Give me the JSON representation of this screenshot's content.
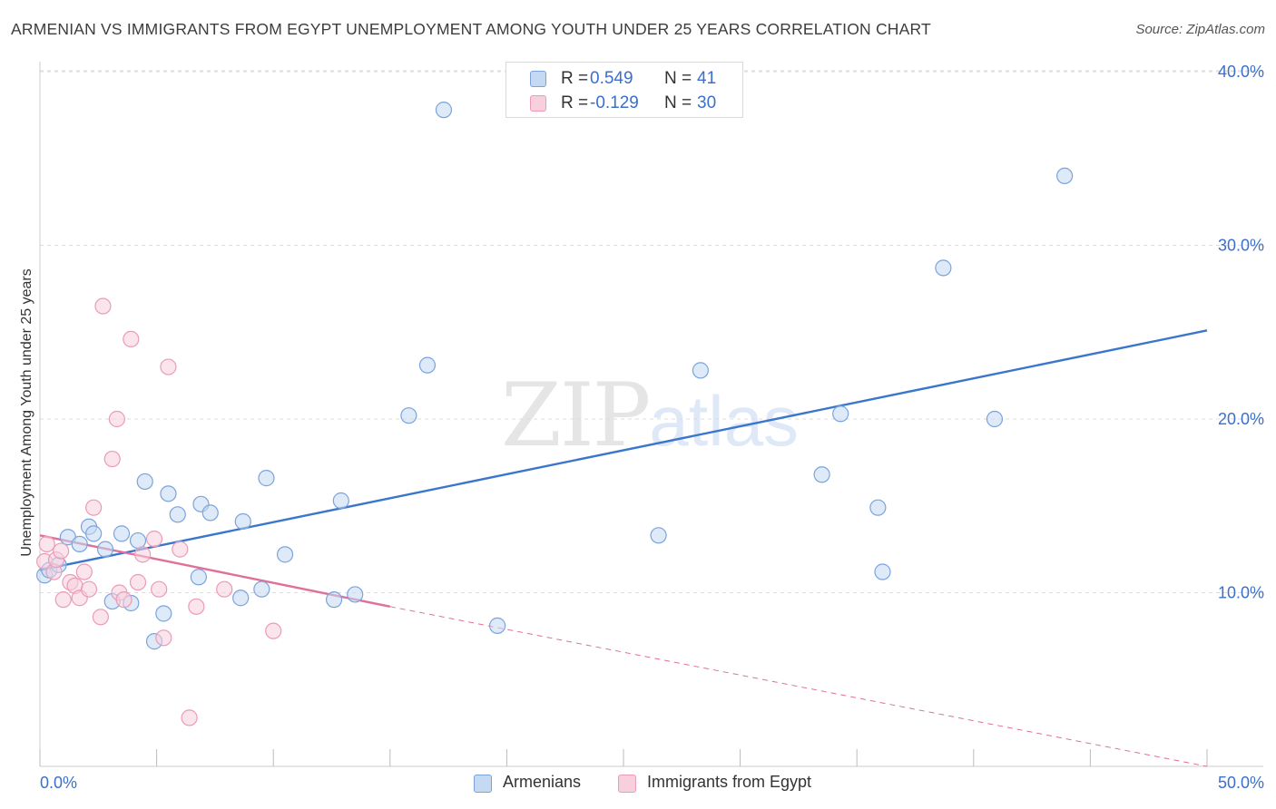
{
  "title": "ARMENIAN VS IMMIGRANTS FROM EGYPT UNEMPLOYMENT AMONG YOUTH UNDER 25 YEARS CORRELATION CHART",
  "source": "Source: ZipAtlas.com",
  "watermark": {
    "zip": "ZIP",
    "atlas": "atlas"
  },
  "legend": {
    "r_label": "R =",
    "n_label": "N =",
    "rows": [
      {
        "r": "0.549",
        "n": "41"
      },
      {
        "r": "-0.129",
        "n": "30"
      }
    ]
  },
  "colors": {
    "blue": "#3a76cc",
    "blue_fill": "#c5d9f3",
    "blue_edge": "#7aa3dd",
    "pink": "#e0709a",
    "pink_fill": "#f8cfdc",
    "pink_edge": "#ec9ab6",
    "axis_text": "#3a6fce",
    "grid": "#dddddd"
  },
  "chart_data": {
    "type": "scatter",
    "title": "ARMENIAN VS IMMIGRANTS FROM EGYPT UNEMPLOYMENT AMONG YOUTH UNDER 25 YEARS CORRELATION CHART",
    "xlabel": "",
    "ylabel": "Unemployment Among Youth under 25 years",
    "xlim": [
      0,
      50
    ],
    "ylim": [
      0,
      40
    ],
    "x_tick_labels": [
      "0.0%",
      "50.0%"
    ],
    "y_ticks": [
      10,
      20,
      30,
      40
    ],
    "y_tick_labels": [
      "10.0%",
      "20.0%",
      "30.0%",
      "40.0%"
    ],
    "grid": true,
    "legend_position": "top-center",
    "series": [
      {
        "name": "Armenians",
        "color": "#3a76cc",
        "points": [
          [
            0.2,
            11.0
          ],
          [
            0.4,
            11.3
          ],
          [
            0.8,
            11.6
          ],
          [
            1.2,
            13.2
          ],
          [
            1.7,
            12.8
          ],
          [
            2.1,
            13.8
          ],
          [
            2.3,
            13.4
          ],
          [
            2.8,
            12.5
          ],
          [
            3.1,
            9.5
          ],
          [
            3.5,
            13.4
          ],
          [
            3.9,
            9.4
          ],
          [
            4.2,
            13.0
          ],
          [
            4.5,
            16.4
          ],
          [
            4.9,
            7.2
          ],
          [
            5.3,
            8.8
          ],
          [
            5.5,
            15.7
          ],
          [
            5.9,
            14.5
          ],
          [
            6.8,
            10.9
          ],
          [
            6.9,
            15.1
          ],
          [
            7.3,
            14.6
          ],
          [
            8.6,
            9.7
          ],
          [
            8.7,
            14.1
          ],
          [
            9.5,
            10.2
          ],
          [
            9.7,
            16.6
          ],
          [
            10.5,
            12.2
          ],
          [
            12.6,
            9.6
          ],
          [
            12.9,
            15.3
          ],
          [
            13.5,
            9.9
          ],
          [
            15.8,
            20.2
          ],
          [
            16.6,
            23.1
          ],
          [
            17.3,
            37.8
          ],
          [
            19.6,
            8.1
          ],
          [
            26.5,
            13.3
          ],
          [
            28.3,
            22.8
          ],
          [
            33.5,
            16.8
          ],
          [
            34.3,
            20.3
          ],
          [
            35.9,
            14.9
          ],
          [
            36.1,
            11.2
          ],
          [
            38.7,
            28.7
          ],
          [
            40.9,
            20.0
          ],
          [
            43.9,
            34.0
          ]
        ],
        "trend": {
          "x": [
            0,
            50
          ],
          "y": [
            11.3,
            25.1
          ]
        }
      },
      {
        "name": "Immigrants from Egypt",
        "color": "#e0709a",
        "points": [
          [
            0.2,
            11.8
          ],
          [
            0.3,
            12.8
          ],
          [
            0.6,
            11.2
          ],
          [
            0.7,
            11.9
          ],
          [
            0.9,
            12.4
          ],
          [
            1.0,
            9.6
          ],
          [
            1.3,
            10.6
          ],
          [
            1.5,
            10.4
          ],
          [
            1.7,
            9.7
          ],
          [
            1.9,
            11.2
          ],
          [
            2.1,
            10.2
          ],
          [
            2.3,
            14.9
          ],
          [
            2.6,
            8.6
          ],
          [
            2.7,
            26.5
          ],
          [
            3.1,
            17.7
          ],
          [
            3.3,
            20.0
          ],
          [
            3.4,
            10.0
          ],
          [
            3.6,
            9.6
          ],
          [
            3.9,
            24.6
          ],
          [
            4.2,
            10.6
          ],
          [
            4.4,
            12.2
          ],
          [
            4.9,
            13.1
          ],
          [
            5.1,
            10.2
          ],
          [
            5.3,
            7.4
          ],
          [
            5.5,
            23.0
          ],
          [
            6.0,
            12.5
          ],
          [
            6.4,
            2.8
          ],
          [
            6.7,
            9.2
          ],
          [
            7.9,
            10.2
          ],
          [
            10.0,
            7.8
          ]
        ],
        "trend": {
          "x": [
            0,
            15
          ],
          "y": [
            13.3,
            9.2
          ]
        },
        "trend_extension": {
          "x": [
            15,
            50
          ],
          "y": [
            9.2,
            0.0
          ]
        }
      }
    ]
  }
}
